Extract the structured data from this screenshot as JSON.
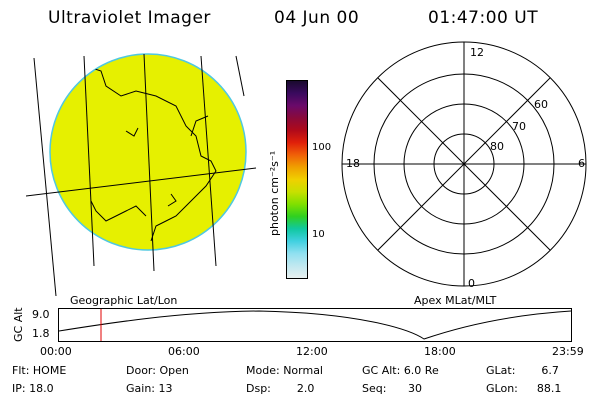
{
  "header": {
    "instrument": "Ultraviolet Imager",
    "date": "04 Jun 00",
    "time": "01:47:00 UT"
  },
  "map": {
    "label": "Geographic Lat/Lon",
    "fill_color": "#e6f000"
  },
  "colorbar": {
    "unit_label": "photon cm⁻²s⁻¹",
    "ticks": [
      "100",
      "10"
    ],
    "colors": [
      "#1a0a2e",
      "#3a0a5e",
      "#6a0a6a",
      "#8a0a3a",
      "#b00a1a",
      "#e0200a",
      "#f06008",
      "#f0a000",
      "#f0d000",
      "#c8e000",
      "#80e000",
      "#30d020",
      "#10c8a0",
      "#40d0e0",
      "#90e0f0",
      "#c0e8f0",
      "#e8f0f0"
    ]
  },
  "polar": {
    "label": "Apex MLat/MLT",
    "mlt_labels": {
      "top": "12",
      "left": "18",
      "right": "6",
      "bottom": "0"
    },
    "lat_labels": [
      "60",
      "70",
      "80"
    ]
  },
  "altitude_plot": {
    "ylabel": "GC Alt",
    "yticks": [
      "9.0",
      "1.8"
    ],
    "xticks": [
      "00:00",
      "06:00",
      "12:00",
      "18:00",
      "23:59"
    ],
    "current_marker_color": "#e00000"
  },
  "footer": {
    "row1": [
      {
        "key": "Flt:",
        "value": "HOME"
      },
      {
        "key": "Door:",
        "value": "Open"
      },
      {
        "key": "Mode:",
        "value": "Normal"
      },
      {
        "key": "GC Alt:",
        "value": "6.0 Re"
      },
      {
        "key": "GLat:",
        "value": "6.7"
      }
    ],
    "row2": [
      {
        "key": "IP:",
        "value": "18.0"
      },
      {
        "key": "Gain:",
        "value": "13"
      },
      {
        "key": "Dsp:",
        "value": "2.0"
      },
      {
        "key": "Seq:",
        "value": "30"
      },
      {
        "key": "GLon:",
        "value": "88.1"
      }
    ]
  }
}
